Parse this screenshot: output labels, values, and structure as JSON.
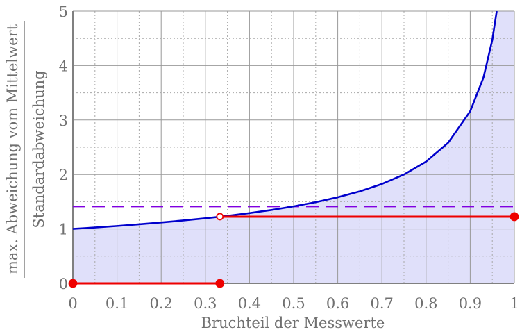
{
  "chart_data": {
    "type": "line",
    "xlabel": "Bruchteil der Messwerte",
    "ylabel_numerator": "max. Abweichung vom Mittelwert",
    "ylabel_denominator": "Standardabweichung",
    "xlim": [
      0,
      1
    ],
    "ylim": [
      0,
      5
    ],
    "x_ticks": [
      "0",
      "0.1",
      "0.2",
      "0.3",
      "0.4",
      "0.5",
      "0.6",
      "0.7",
      "0.8",
      "0.9",
      "1"
    ],
    "y_ticks": [
      "0",
      "1",
      "2",
      "3",
      "4",
      "5"
    ],
    "grid": true,
    "curve": {
      "x": [
        0,
        0.05,
        0.1,
        0.15,
        0.2,
        0.25,
        0.3,
        0.35,
        0.4,
        0.45,
        0.5,
        0.55,
        0.6,
        0.65,
        0.7,
        0.75,
        0.8,
        0.85,
        0.9,
        0.93,
        0.95,
        0.96
      ],
      "y": [
        1.0,
        1.026,
        1.054,
        1.085,
        1.118,
        1.155,
        1.195,
        1.24,
        1.291,
        1.348,
        1.414,
        1.491,
        1.581,
        1.69,
        1.826,
        2.0,
        2.236,
        2.582,
        3.162,
        3.78,
        4.472,
        5.0
      ],
      "color": "#0000cc",
      "fill": "#e0e0fa"
    },
    "dashed_line": {
      "y": 1.414,
      "color": "#8000e0"
    },
    "steps": {
      "color": "#ee0000",
      "segments": [
        {
          "x": [
            0,
            0.333
          ],
          "y": 0,
          "start": "filled",
          "end": "filled"
        },
        {
          "x": [
            0.333,
            1
          ],
          "y": 1.225,
          "start": "open",
          "end": "filled"
        }
      ]
    }
  }
}
